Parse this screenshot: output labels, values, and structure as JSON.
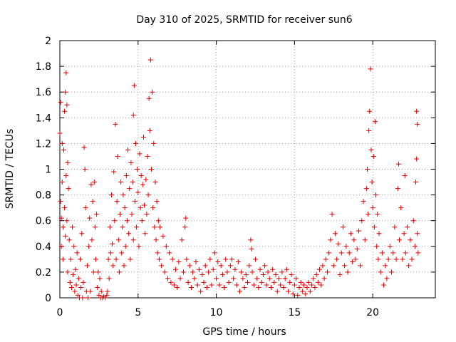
{
  "chart_data": {
    "type": "scatter",
    "title": "Day 310 of 2025, SRMTID for receiver sun6",
    "xlabel": "GPS time / hours",
    "ylabel": "SRMTID / TECUs",
    "xlim": [
      0,
      24
    ],
    "ylim": [
      0,
      2
    ],
    "xticks": [
      0,
      5,
      10,
      15,
      20
    ],
    "xtick_labels": [
      "0",
      "5",
      "10",
      "15",
      "20"
    ],
    "yticks": [
      0,
      0.2,
      0.4,
      0.6,
      0.8,
      1,
      1.2,
      1.4,
      1.6,
      1.8,
      2
    ],
    "ytick_labels": [
      "0",
      "0.2",
      "0.4",
      "0.6",
      "0.8",
      "1",
      "1.2",
      "1.4",
      "1.6",
      "1.8",
      "2"
    ],
    "grid": true,
    "marker": "+",
    "color": "#e00000",
    "series": [
      {
        "name": "sun6",
        "points": [
          [
            0.0,
            1.28
          ],
          [
            0.05,
            1.52
          ],
          [
            0.05,
            0.75
          ],
          [
            0.1,
            0.62
          ],
          [
            0.1,
            0.4
          ],
          [
            0.15,
            1.2
          ],
          [
            0.15,
            0.9
          ],
          [
            0.2,
            0.55
          ],
          [
            0.2,
            0.3
          ],
          [
            0.25,
            1.15
          ],
          [
            0.3,
            1.45
          ],
          [
            0.3,
            0.7
          ],
          [
            0.35,
            1.6
          ],
          [
            0.35,
            0.48
          ],
          [
            0.4,
            1.75
          ],
          [
            0.4,
            0.95
          ],
          [
            0.45,
            1.5
          ],
          [
            0.45,
            0.6
          ],
          [
            0.5,
            1.05
          ],
          [
            0.5,
            0.2
          ],
          [
            0.55,
            0.85
          ],
          [
            0.6,
            0.45
          ],
          [
            0.65,
            0.12
          ],
          [
            0.7,
            0.3
          ],
          [
            0.75,
            0.08
          ],
          [
            0.8,
            0.55
          ],
          [
            0.85,
            0.18
          ],
          [
            0.9,
            0.4
          ],
          [
            0.95,
            0.05
          ],
          [
            1.0,
            0.22
          ],
          [
            1.05,
            0.1
          ],
          [
            1.1,
            0.35
          ],
          [
            1.15,
            0.02
          ],
          [
            1.2,
            0.15
          ],
          [
            1.25,
            0.0
          ],
          [
            1.3,
            0.3
          ],
          [
            1.35,
            0.08
          ],
          [
            1.4,
            0.5
          ],
          [
            1.45,
            0.0
          ],
          [
            1.5,
            0.12
          ],
          [
            1.55,
            1.17
          ],
          [
            1.6,
            1.0
          ],
          [
            1.65,
            0.7
          ],
          [
            1.7,
            0.05
          ],
          [
            1.75,
            0.25
          ],
          [
            1.8,
            0.0
          ],
          [
            1.85,
            0.4
          ],
          [
            1.9,
            0.62
          ],
          [
            1.95,
            0.05
          ],
          [
            2.0,
            0.88
          ],
          [
            2.05,
            0.45
          ],
          [
            2.1,
            0.75
          ],
          [
            2.15,
            0.2
          ],
          [
            2.2,
            0.9
          ],
          [
            2.25,
            0.55
          ],
          [
            2.3,
            0.3
          ],
          [
            2.35,
            0.65
          ],
          [
            2.4,
            0.08
          ],
          [
            2.45,
            0.2
          ],
          [
            2.5,
            0.02
          ],
          [
            2.55,
            0.15
          ],
          [
            2.6,
            0.0
          ],
          [
            2.65,
            0.05
          ],
          [
            2.7,
            0.0
          ],
          [
            2.8,
            0.01
          ],
          [
            2.9,
            0.0
          ],
          [
            3.0,
            0.02
          ],
          [
            3.05,
            0.05
          ],
          [
            3.1,
            0.3
          ],
          [
            3.15,
            0.15
          ],
          [
            3.2,
            0.55
          ],
          [
            3.25,
            0.35
          ],
          [
            3.3,
            0.8
          ],
          [
            3.35,
            0.42
          ],
          [
            3.4,
            0.25
          ],
          [
            3.45,
            0.98
          ],
          [
            3.5,
            0.6
          ],
          [
            3.55,
            1.35
          ],
          [
            3.6,
            0.3
          ],
          [
            3.65,
            0.75
          ],
          [
            3.7,
            1.1
          ],
          [
            3.75,
            0.45
          ],
          [
            3.8,
            0.2
          ],
          [
            3.85,
            0.65
          ],
          [
            3.9,
            0.9
          ],
          [
            3.95,
            0.35
          ],
          [
            4.0,
            0.55
          ],
          [
            4.05,
            0.8
          ],
          [
            4.1,
            0.25
          ],
          [
            4.15,
            0.7
          ],
          [
            4.2,
            0.4
          ],
          [
            4.25,
            0.95
          ],
          [
            4.3,
            0.6
          ],
          [
            4.35,
            1.15
          ],
          [
            4.4,
            0.5
          ],
          [
            4.45,
            0.85
          ],
          [
            4.5,
            0.3
          ],
          [
            4.55,
            1.05
          ],
          [
            4.6,
            0.65
          ],
          [
            4.65,
            0.9
          ],
          [
            4.7,
            1.42
          ],
          [
            4.7,
            0.45
          ],
          [
            4.75,
            1.65
          ],
          [
            4.8,
            0.75
          ],
          [
            4.85,
            1.2
          ],
          [
            4.9,
            0.55
          ],
          [
            4.95,
            1.0
          ],
          [
            5.0,
            0.82
          ],
          [
            5.05,
            0.4
          ],
          [
            5.1,
            1.12
          ],
          [
            5.15,
            0.7
          ],
          [
            5.2,
            0.95
          ],
          [
            5.25,
            0.6
          ],
          [
            5.3,
            0.88
          ],
          [
            5.35,
            1.25
          ],
          [
            5.4,
            0.72
          ],
          [
            5.45,
            0.5
          ],
          [
            5.5,
            0.92
          ],
          [
            5.55,
            0.65
          ],
          [
            5.6,
            1.1
          ],
          [
            5.65,
            0.8
          ],
          [
            5.7,
            1.55
          ],
          [
            5.75,
            1.3
          ],
          [
            5.8,
            1.85
          ],
          [
            5.85,
            1.0
          ],
          [
            5.9,
            1.6
          ],
          [
            5.95,
            0.7
          ],
          [
            6.0,
            1.2
          ],
          [
            6.05,
            0.55
          ],
          [
            6.1,
            0.9
          ],
          [
            6.15,
            0.45
          ],
          [
            6.2,
            0.75
          ],
          [
            6.25,
            0.35
          ],
          [
            6.3,
            0.6
          ],
          [
            6.35,
            0.3
          ],
          [
            6.4,
            0.55
          ],
          [
            6.5,
            0.25
          ],
          [
            6.6,
            0.48
          ],
          [
            6.7,
            0.2
          ],
          [
            6.8,
            0.4
          ],
          [
            6.9,
            0.15
          ],
          [
            7.0,
            0.35
          ],
          [
            7.1,
            0.12
          ],
          [
            7.2,
            0.3
          ],
          [
            7.3,
            0.1
          ],
          [
            7.4,
            0.22
          ],
          [
            7.5,
            0.08
          ],
          [
            7.6,
            0.28
          ],
          [
            7.7,
            0.15
          ],
          [
            7.8,
            0.45
          ],
          [
            7.9,
            0.2
          ],
          [
            8.0,
            0.55
          ],
          [
            8.05,
            0.62
          ],
          [
            8.1,
            0.3
          ],
          [
            8.2,
            0.12
          ],
          [
            8.3,
            0.25
          ],
          [
            8.4,
            0.08
          ],
          [
            8.5,
            0.2
          ],
          [
            8.6,
            0.15
          ],
          [
            8.7,
            0.28
          ],
          [
            8.8,
            0.1
          ],
          [
            8.9,
            0.22
          ],
          [
            9.0,
            0.05
          ],
          [
            9.1,
            0.18
          ],
          [
            9.2,
            0.12
          ],
          [
            9.3,
            0.25
          ],
          [
            9.4,
            0.08
          ],
          [
            9.5,
            0.2
          ],
          [
            9.6,
            0.3
          ],
          [
            9.7,
            0.1
          ],
          [
            9.8,
            0.22
          ],
          [
            9.9,
            0.35
          ],
          [
            10.0,
            0.15
          ],
          [
            10.1,
            0.28
          ],
          [
            10.2,
            0.1
          ],
          [
            10.3,
            0.25
          ],
          [
            10.4,
            0.18
          ],
          [
            10.5,
            0.08
          ],
          [
            10.6,
            0.3
          ],
          [
            10.7,
            0.2
          ],
          [
            10.8,
            0.12
          ],
          [
            10.9,
            0.25
          ],
          [
            11.0,
            0.3
          ],
          [
            11.1,
            0.15
          ],
          [
            11.2,
            0.22
          ],
          [
            11.3,
            0.1
          ],
          [
            11.4,
            0.28
          ],
          [
            11.5,
            0.05
          ],
          [
            11.6,
            0.2
          ],
          [
            11.7,
            0.15
          ],
          [
            11.8,
            0.08
          ],
          [
            11.9,
            0.18
          ],
          [
            12.0,
            0.12
          ],
          [
            12.1,
            0.25
          ],
          [
            12.2,
            0.45
          ],
          [
            12.25,
            0.38
          ],
          [
            12.3,
            0.2
          ],
          [
            12.4,
            0.1
          ],
          [
            12.5,
            0.3
          ],
          [
            12.6,
            0.15
          ],
          [
            12.7,
            0.08
          ],
          [
            12.8,
            0.22
          ],
          [
            12.9,
            0.12
          ],
          [
            13.0,
            0.18
          ],
          [
            13.1,
            0.25
          ],
          [
            13.2,
            0.1
          ],
          [
            13.3,
            0.2
          ],
          [
            13.4,
            0.15
          ],
          [
            13.5,
            0.08
          ],
          [
            13.6,
            0.22
          ],
          [
            13.7,
            0.12
          ],
          [
            13.8,
            0.18
          ],
          [
            13.9,
            0.05
          ],
          [
            14.0,
            0.15
          ],
          [
            14.1,
            0.1
          ],
          [
            14.2,
            0.2
          ],
          [
            14.3,
            0.08
          ],
          [
            14.4,
            0.15
          ],
          [
            14.5,
            0.22
          ],
          [
            14.6,
            0.05
          ],
          [
            14.7,
            0.12
          ],
          [
            14.8,
            0.18
          ],
          [
            14.9,
            0.03
          ],
          [
            15.0,
            0.1
          ],
          [
            15.1,
            0.15
          ],
          [
            15.2,
            0.02
          ],
          [
            15.3,
            0.08
          ],
          [
            15.4,
            0.12
          ],
          [
            15.5,
            0.05
          ],
          [
            15.6,
            0.1
          ],
          [
            15.7,
            0.03
          ],
          [
            15.8,
            0.08
          ],
          [
            15.9,
            0.12
          ],
          [
            16.0,
            0.05
          ],
          [
            16.1,
            0.1
          ],
          [
            16.2,
            0.15
          ],
          [
            16.3,
            0.08
          ],
          [
            16.4,
            0.18
          ],
          [
            16.5,
            0.12
          ],
          [
            16.6,
            0.22
          ],
          [
            16.7,
            0.1
          ],
          [
            16.8,
            0.25
          ],
          [
            16.9,
            0.15
          ],
          [
            17.0,
            0.3
          ],
          [
            17.1,
            0.2
          ],
          [
            17.2,
            0.35
          ],
          [
            17.3,
            0.45
          ],
          [
            17.4,
            0.65
          ],
          [
            17.5,
            0.25
          ],
          [
            17.6,
            0.5
          ],
          [
            17.7,
            0.3
          ],
          [
            17.8,
            0.42
          ],
          [
            17.9,
            0.18
          ],
          [
            18.0,
            0.35
          ],
          [
            18.1,
            0.55
          ],
          [
            18.2,
            0.25
          ],
          [
            18.3,
            0.4
          ],
          [
            18.4,
            0.2
          ],
          [
            18.5,
            0.35
          ],
          [
            18.6,
            0.5
          ],
          [
            18.7,
            0.28
          ],
          [
            18.8,
            0.45
          ],
          [
            18.9,
            0.3
          ],
          [
            19.0,
            0.38
          ],
          [
            19.1,
            0.52
          ],
          [
            19.2,
            0.25
          ],
          [
            19.3,
            0.6
          ],
          [
            19.4,
            0.75
          ],
          [
            19.5,
            0.45
          ],
          [
            19.6,
            0.85
          ],
          [
            19.65,
            1.0
          ],
          [
            19.7,
            0.65
          ],
          [
            19.75,
            1.3
          ],
          [
            19.8,
            1.45
          ],
          [
            19.85,
            1.78
          ],
          [
            19.9,
            1.15
          ],
          [
            19.95,
            0.9
          ],
          [
            20.0,
            0.7
          ],
          [
            20.05,
            1.1
          ],
          [
            20.1,
            0.55
          ],
          [
            20.15,
            1.37
          ],
          [
            20.2,
            0.8
          ],
          [
            20.25,
            0.4
          ],
          [
            20.3,
            0.65
          ],
          [
            20.35,
            0.3
          ],
          [
            20.4,
            0.5
          ],
          [
            20.5,
            0.2
          ],
          [
            20.6,
            0.35
          ],
          [
            20.7,
            0.1
          ],
          [
            20.8,
            0.25
          ],
          [
            20.9,
            0.15
          ],
          [
            21.0,
            0.3
          ],
          [
            21.1,
            0.4
          ],
          [
            21.2,
            0.2
          ],
          [
            21.3,
            0.35
          ],
          [
            21.4,
            0.55
          ],
          [
            21.5,
            0.3
          ],
          [
            21.6,
            0.85
          ],
          [
            21.65,
            1.04
          ],
          [
            21.7,
            0.45
          ],
          [
            21.8,
            0.7
          ],
          [
            21.9,
            0.3
          ],
          [
            22.0,
            0.5
          ],
          [
            22.05,
            0.95
          ],
          [
            22.1,
            0.35
          ],
          [
            22.2,
            0.55
          ],
          [
            22.3,
            0.25
          ],
          [
            22.4,
            0.45
          ],
          [
            22.5,
            0.3
          ],
          [
            22.6,
            0.6
          ],
          [
            22.7,
            0.4
          ],
          [
            22.75,
            0.9
          ],
          [
            22.8,
            1.08
          ],
          [
            22.8,
            1.45
          ],
          [
            22.85,
            1.35
          ],
          [
            22.85,
            0.5
          ],
          [
            22.9,
            0.35
          ]
        ]
      }
    ]
  }
}
